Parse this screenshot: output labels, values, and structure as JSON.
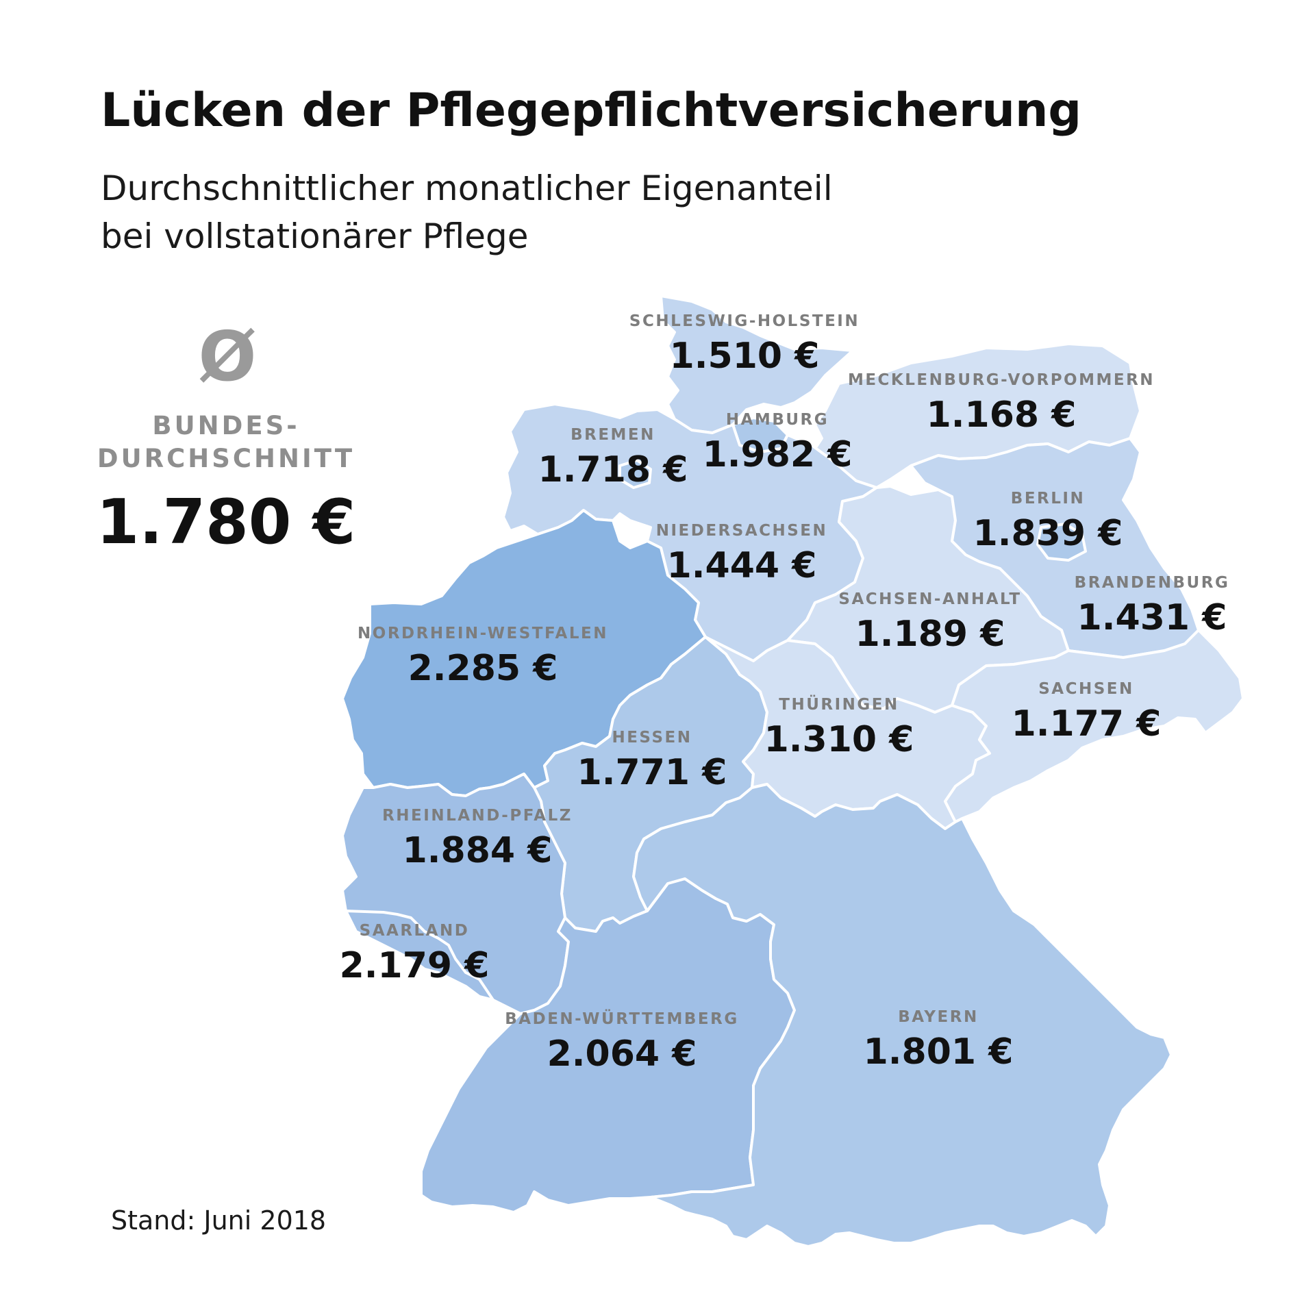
{
  "title": "Lücken der Pflegepflichtversicherung",
  "subtitle_line1": "Durchschnittlicher monatlicher Eigenanteil",
  "subtitle_line2": "bei vollstationärer Pflege",
  "average": {
    "symbol": "Ø",
    "label_line1": "BUNDES-",
    "label_line2": "DURCHSCHNITT",
    "value": "1.780 €"
  },
  "footer": "Stand: Juni 2018",
  "colors": {
    "lightest": "#d3e1f4",
    "light": "#c2d6f0",
    "medium": "#adc9ea",
    "medium_dark": "#a0bfe6",
    "dark": "#8ab4e2"
  },
  "regions": {
    "schleswig_holstein": {
      "name": "SCHLESWIG-HOLSTEIN",
      "value": "1.510 €"
    },
    "mecklenburg_vorpommern": {
      "name": "MECKLENBURG-VORPOMMERN",
      "value": "1.168 €"
    },
    "hamburg": {
      "name": "HAMBURG",
      "value": "1.982 €"
    },
    "bremen": {
      "name": "BREMEN",
      "value": "1.718 €"
    },
    "berlin": {
      "name": "BERLIN",
      "value": "1.839 €"
    },
    "niedersachsen": {
      "name": "NIEDERSACHSEN",
      "value": "1.444 €"
    },
    "brandenburg": {
      "name": "BRANDENBURG",
      "value": "1.431 €"
    },
    "sachsen_anhalt": {
      "name": "SACHSEN-ANHALT",
      "value": "1.189 €"
    },
    "nordrhein_westfalen": {
      "name": "NORDRHEIN-WESTFALEN",
      "value": "2.285 €"
    },
    "thueringen": {
      "name": "THÜRINGEN",
      "value": "1.310 €"
    },
    "sachsen": {
      "name": "SACHSEN",
      "value": "1.177 €"
    },
    "hessen": {
      "name": "HESSEN",
      "value": "1.771 €"
    },
    "rheinland_pfalz": {
      "name": "RHEINLAND-PFALZ",
      "value": "1.884 €"
    },
    "saarland": {
      "name": "SAARLAND",
      "value": "2.179 €"
    },
    "baden_wuerttemberg": {
      "name": "BADEN-WÜRTTEMBERG",
      "value": "2.064 €"
    },
    "bayern": {
      "name": "BAYERN",
      "value": "1.801 €"
    }
  }
}
